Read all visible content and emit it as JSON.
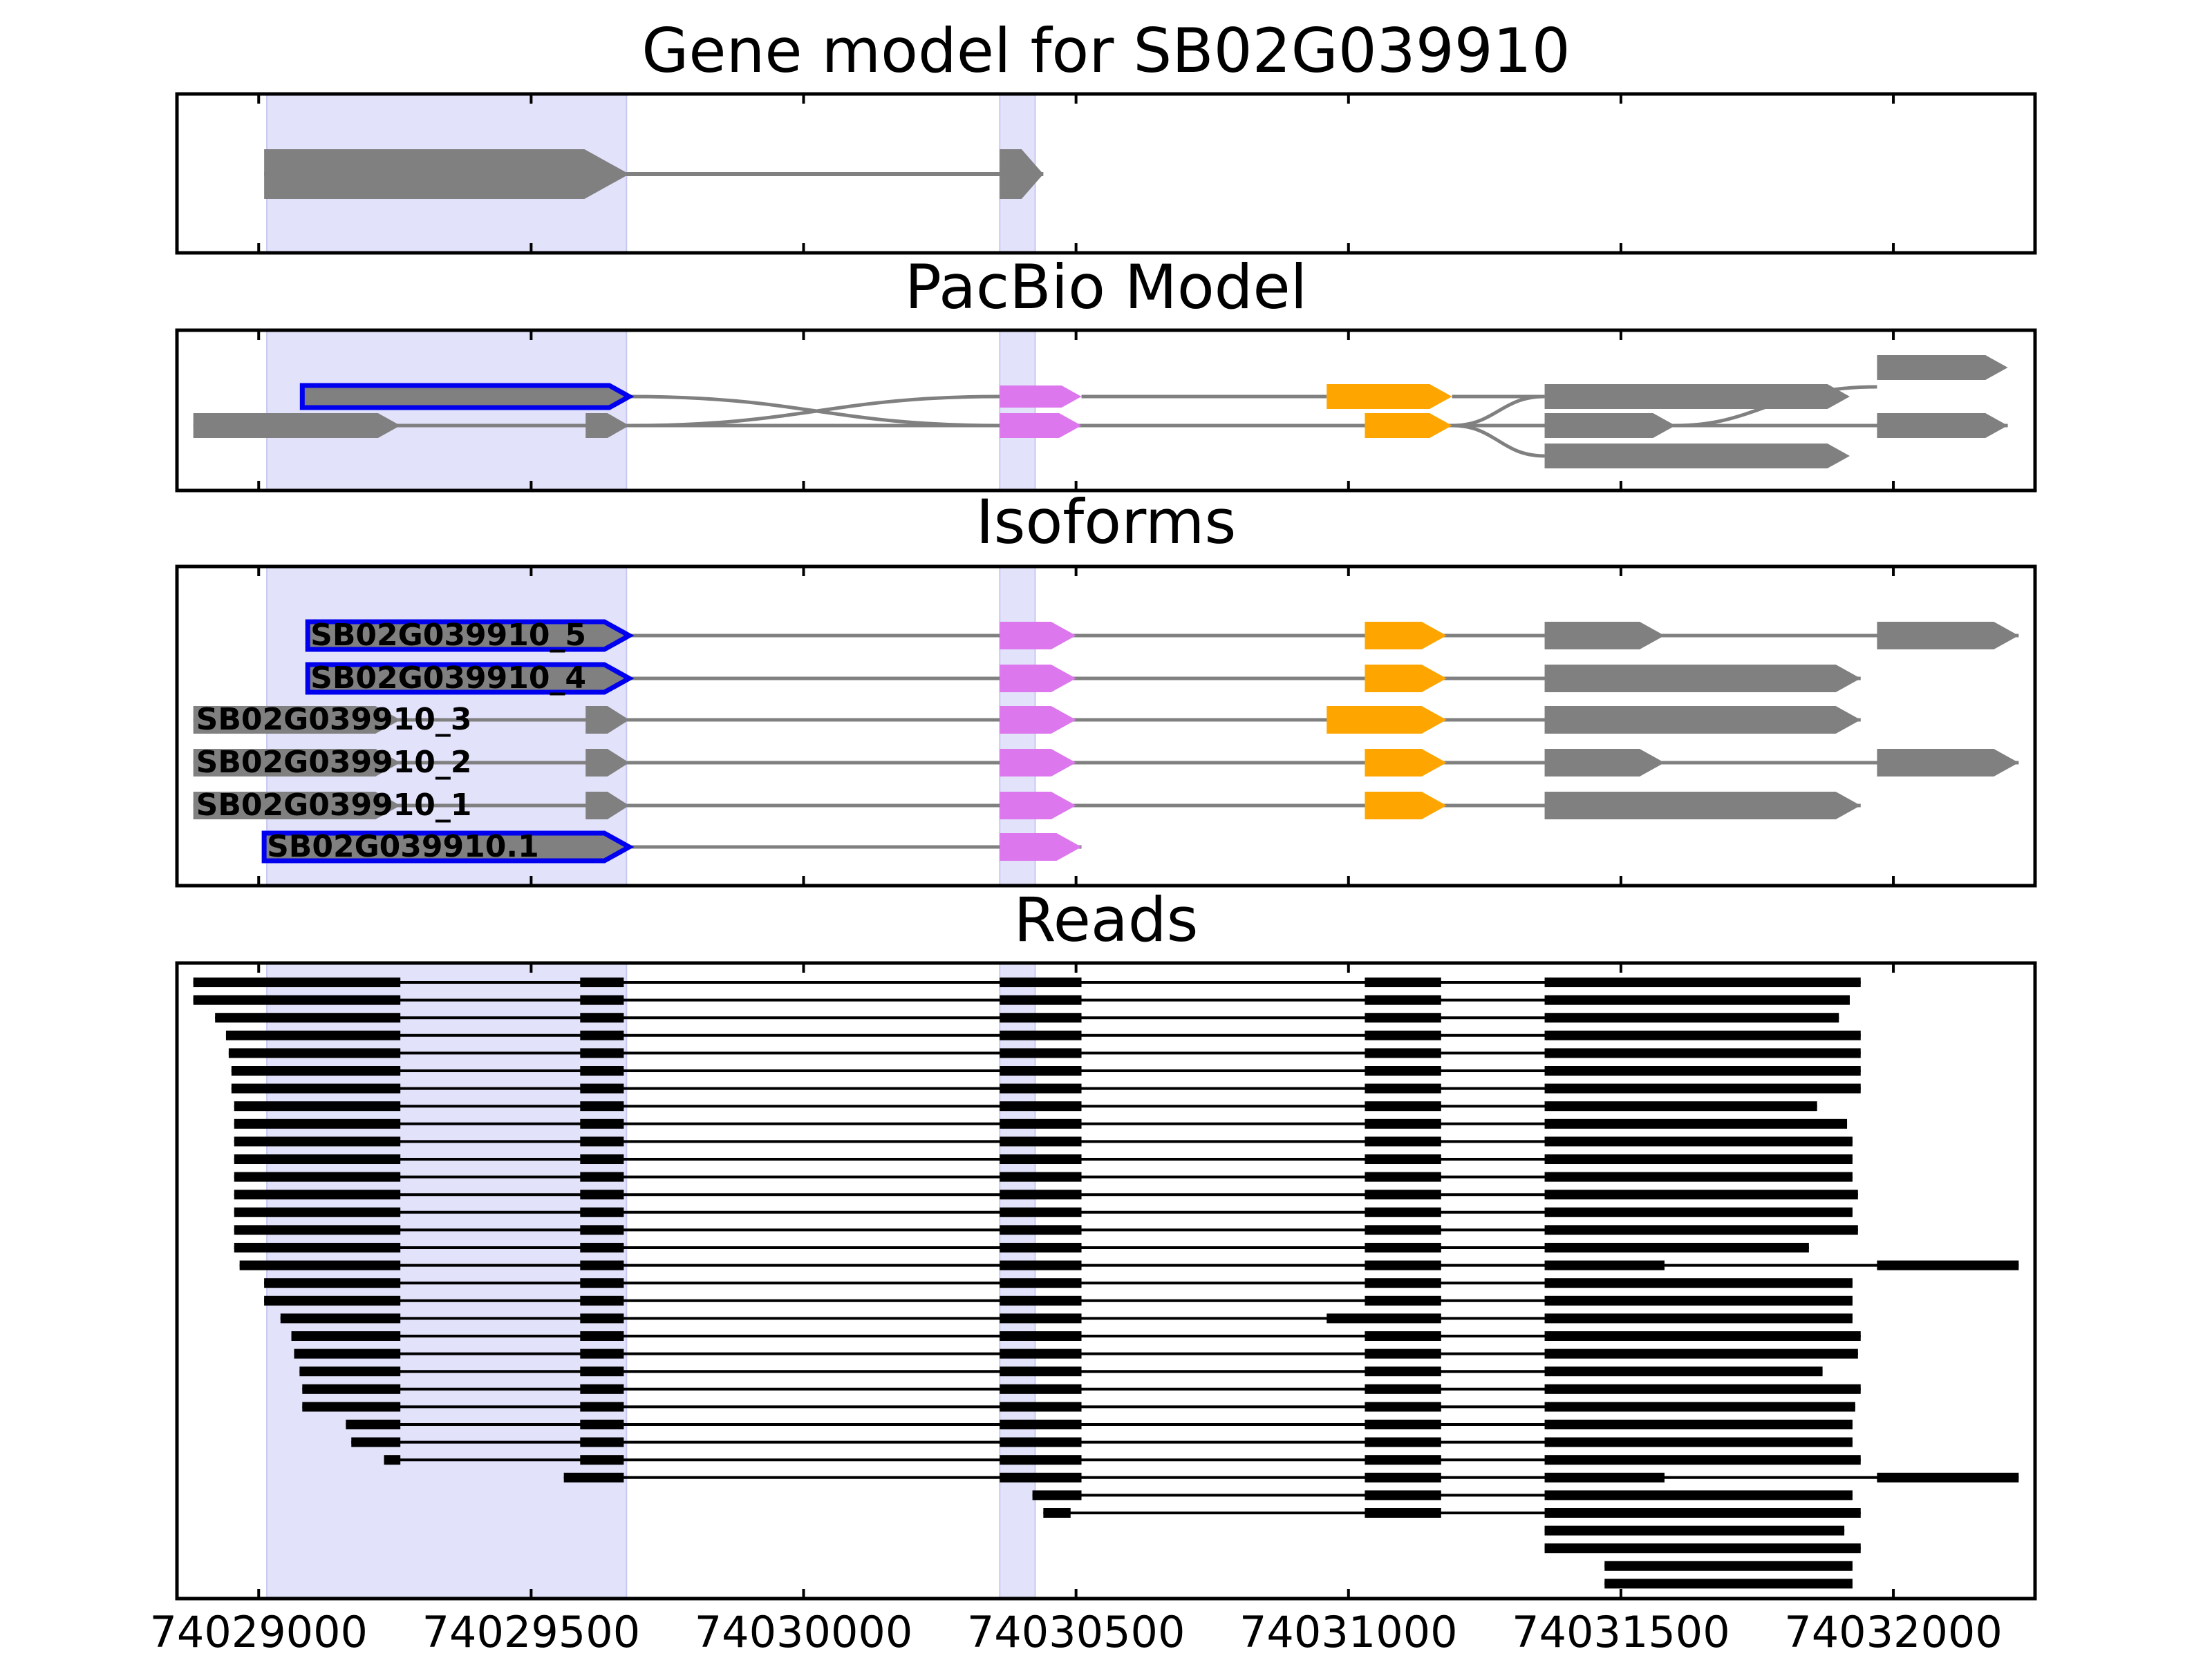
{
  "panels": [
    {
      "title": "Gene model for SB02G039910"
    },
    {
      "title": "PacBio Model"
    },
    {
      "title": "Isoforms"
    },
    {
      "title": "Reads"
    }
  ],
  "x_ticks": [
    {
      "value": 74029000,
      "label": "74029000"
    },
    {
      "value": 74029500,
      "label": "74029500"
    },
    {
      "value": 74030000,
      "label": "74030000"
    },
    {
      "value": 74030500,
      "label": "74030500"
    },
    {
      "value": 74031000,
      "label": "74031000"
    },
    {
      "value": 74031500,
      "label": "74031500"
    },
    {
      "value": 74032000,
      "label": "74032000"
    }
  ],
  "colors": {
    "highlight": "#e2e2fb",
    "exon_gray": "#808080",
    "exon_pink": "#dd77ee",
    "exon_orange": "#ffa500",
    "outline_blue": "#0000ee",
    "intron": "#808080",
    "read": "#000000"
  },
  "chart_data": {
    "type": "gene-structure",
    "x_range": [
      74028850,
      74032260
    ],
    "highlight_regions": [
      [
        74029015,
        74029675
      ],
      [
        74030360,
        74030425
      ]
    ],
    "gene_model": [
      {
        "exons": [
          [
            74029010,
            74029680
          ],
          [
            74030360,
            74030440
          ]
        ],
        "color": "gray",
        "strand": "+"
      }
    ],
    "pacbio_model": [
      {
        "exons": [
          [
            74029080,
            74029680
          ],
          [
            74030360,
            74030510
          ],
          [
            74030960,
            74031190
          ],
          [
            74031360,
            74031920
          ],
          [
            74031970,
            74032210
          ]
        ],
        "color": "pink",
        "outline": true
      },
      {
        "exons": [
          [
            74028880,
            74029260
          ],
          [
            74029600,
            74029680
          ],
          [
            74030360,
            74030510
          ],
          [
            74031030,
            74031190
          ],
          [
            74031360,
            74031600
          ],
          [
            74031970,
            74032210
          ]
        ],
        "color": "gray"
      },
      {
        "exons": [
          [
            74031360,
            74031920
          ]
        ],
        "color": "gray"
      }
    ],
    "isoforms": [
      {
        "name": "SB02G039910_5",
        "exons": [
          [
            74029090,
            74029680
          ],
          [
            74030360,
            74030500
          ],
          [
            74031030,
            74031180
          ],
          [
            74031360,
            74031580
          ],
          [
            74031970,
            74032230
          ]
        ],
        "outline": true
      },
      {
        "name": "SB02G039910_4",
        "exons": [
          [
            74029090,
            74029680
          ],
          [
            74030360,
            74030500
          ],
          [
            74031030,
            74031180
          ],
          [
            74031360,
            74031940
          ]
        ],
        "outline": true
      },
      {
        "name": "SB02G039910_3",
        "exons": [
          [
            74028880,
            74029260
          ],
          [
            74029600,
            74029680
          ],
          [
            74030360,
            74030500
          ],
          [
            74030960,
            74031180
          ],
          [
            74031360,
            74031940
          ]
        ],
        "outline": false
      },
      {
        "name": "SB02G039910_2",
        "exons": [
          [
            74028880,
            74029260
          ],
          [
            74029600,
            74029680
          ],
          [
            74030360,
            74030500
          ],
          [
            74031030,
            74031180
          ],
          [
            74031360,
            74031580
          ],
          [
            74031970,
            74032230
          ]
        ],
        "outline": false
      },
      {
        "name": "SB02G039910_1",
        "exons": [
          [
            74028880,
            74029260
          ],
          [
            74029600,
            74029680
          ],
          [
            74030360,
            74030500
          ],
          [
            74031030,
            74031180
          ],
          [
            74031360,
            74031940
          ]
        ],
        "outline": false
      },
      {
        "name": "SB02G039910.1",
        "exons": [
          [
            74029010,
            74029680
          ],
          [
            74030360,
            74030510
          ]
        ],
        "outline": true
      }
    ],
    "reads": [
      {
        "exons": [
          [
            74028880,
            74029260
          ],
          [
            74029590,
            74029670
          ],
          [
            74030360,
            74030510
          ],
          [
            74031030,
            74031170
          ],
          [
            74031360,
            74031940
          ]
        ]
      },
      {
        "exons": [
          [
            74028880,
            74029260
          ],
          [
            74029590,
            74029670
          ],
          [
            74030360,
            74030510
          ],
          [
            74031030,
            74031170
          ],
          [
            74031360,
            74031920
          ]
        ]
      },
      {
        "exons": [
          [
            74028920,
            74029260
          ],
          [
            74029590,
            74029670
          ],
          [
            74030360,
            74030510
          ],
          [
            74031030,
            74031170
          ],
          [
            74031360,
            74031900
          ]
        ]
      },
      {
        "exons": [
          [
            74028940,
            74029260
          ],
          [
            74029590,
            74029670
          ],
          [
            74030360,
            74030510
          ],
          [
            74031030,
            74031170
          ],
          [
            74031360,
            74031940
          ]
        ]
      },
      {
        "exons": [
          [
            74028945,
            74029260
          ],
          [
            74029590,
            74029670
          ],
          [
            74030360,
            74030510
          ],
          [
            74031030,
            74031170
          ],
          [
            74031360,
            74031940
          ]
        ]
      },
      {
        "exons": [
          [
            74028950,
            74029260
          ],
          [
            74029590,
            74029670
          ],
          [
            74030360,
            74030510
          ],
          [
            74031030,
            74031170
          ],
          [
            74031360,
            74031940
          ]
        ]
      },
      {
        "exons": [
          [
            74028950,
            74029260
          ],
          [
            74029590,
            74029670
          ],
          [
            74030360,
            74030510
          ],
          [
            74031030,
            74031170
          ],
          [
            74031360,
            74031940
          ]
        ]
      },
      {
        "exons": [
          [
            74028955,
            74029260
          ],
          [
            74029590,
            74029670
          ],
          [
            74030360,
            74030510
          ],
          [
            74031030,
            74031170
          ],
          [
            74031360,
            74031860
          ]
        ]
      },
      {
        "exons": [
          [
            74028955,
            74029260
          ],
          [
            74029590,
            74029670
          ],
          [
            74030360,
            74030510
          ],
          [
            74031030,
            74031170
          ],
          [
            74031360,
            74031915
          ]
        ]
      },
      {
        "exons": [
          [
            74028955,
            74029260
          ],
          [
            74029590,
            74029670
          ],
          [
            74030360,
            74030510
          ],
          [
            74031030,
            74031170
          ],
          [
            74031360,
            74031925
          ]
        ]
      },
      {
        "exons": [
          [
            74028955,
            74029260
          ],
          [
            74029590,
            74029670
          ],
          [
            74030360,
            74030510
          ],
          [
            74031030,
            74031170
          ],
          [
            74031360,
            74031925
          ]
        ]
      },
      {
        "exons": [
          [
            74028955,
            74029260
          ],
          [
            74029590,
            74029670
          ],
          [
            74030360,
            74030510
          ],
          [
            74031030,
            74031170
          ],
          [
            74031360,
            74031925
          ]
        ]
      },
      {
        "exons": [
          [
            74028955,
            74029260
          ],
          [
            74029590,
            74029670
          ],
          [
            74030360,
            74030510
          ],
          [
            74031030,
            74031170
          ],
          [
            74031360,
            74031935
          ]
        ]
      },
      {
        "exons": [
          [
            74028955,
            74029260
          ],
          [
            74029590,
            74029670
          ],
          [
            74030360,
            74030510
          ],
          [
            74031030,
            74031170
          ],
          [
            74031360,
            74031925
          ]
        ]
      },
      {
        "exons": [
          [
            74028955,
            74029260
          ],
          [
            74029590,
            74029670
          ],
          [
            74030360,
            74030510
          ],
          [
            74031030,
            74031170
          ],
          [
            74031360,
            74031935
          ]
        ]
      },
      {
        "exons": [
          [
            74028955,
            74029260
          ],
          [
            74029590,
            74029670
          ],
          [
            74030360,
            74030510
          ],
          [
            74031030,
            74031170
          ],
          [
            74031360,
            74031845
          ]
        ]
      },
      {
        "exons": [
          [
            74028965,
            74029260
          ],
          [
            74029590,
            74029670
          ],
          [
            74030360,
            74030510
          ],
          [
            74031030,
            74031170
          ],
          [
            74031360,
            74031580
          ],
          [
            74031970,
            74032230
          ]
        ]
      },
      {
        "exons": [
          [
            74029010,
            74029260
          ],
          [
            74029590,
            74029670
          ],
          [
            74030360,
            74030510
          ],
          [
            74031030,
            74031170
          ],
          [
            74031360,
            74031925
          ]
        ]
      },
      {
        "exons": [
          [
            74029010,
            74029260
          ],
          [
            74029590,
            74029670
          ],
          [
            74030360,
            74030510
          ],
          [
            74031030,
            74031170
          ],
          [
            74031360,
            74031925
          ]
        ]
      },
      {
        "exons": [
          [
            74029040,
            74029260
          ],
          [
            74029590,
            74029670
          ],
          [
            74030360,
            74030510
          ],
          [
            74030960,
            74031170
          ],
          [
            74031360,
            74031925
          ]
        ]
      },
      {
        "exons": [
          [
            74029060,
            74029260
          ],
          [
            74029590,
            74029670
          ],
          [
            74030360,
            74030510
          ],
          [
            74031030,
            74031170
          ],
          [
            74031360,
            74031940
          ]
        ]
      },
      {
        "exons": [
          [
            74029065,
            74029260
          ],
          [
            74029590,
            74029670
          ],
          [
            74030360,
            74030510
          ],
          [
            74031030,
            74031170
          ],
          [
            74031360,
            74031935
          ]
        ]
      },
      {
        "exons": [
          [
            74029075,
            74029260
          ],
          [
            74029590,
            74029670
          ],
          [
            74030360,
            74030510
          ],
          [
            74031030,
            74031170
          ],
          [
            74031360,
            74031870
          ]
        ]
      },
      {
        "exons": [
          [
            74029080,
            74029260
          ],
          [
            74029590,
            74029670
          ],
          [
            74030360,
            74030510
          ],
          [
            74031030,
            74031170
          ],
          [
            74031360,
            74031940
          ]
        ]
      },
      {
        "exons": [
          [
            74029080,
            74029260
          ],
          [
            74029590,
            74029670
          ],
          [
            74030360,
            74030510
          ],
          [
            74031030,
            74031170
          ],
          [
            74031360,
            74031930
          ]
        ]
      },
      {
        "exons": [
          [
            74029160,
            74029260
          ],
          [
            74029590,
            74029670
          ],
          [
            74030360,
            74030510
          ],
          [
            74031030,
            74031170
          ],
          [
            74031360,
            74031925
          ]
        ]
      },
      {
        "exons": [
          [
            74029170,
            74029260
          ],
          [
            74029590,
            74029670
          ],
          [
            74030360,
            74030510
          ],
          [
            74031030,
            74031170
          ],
          [
            74031360,
            74031925
          ]
        ]
      },
      {
        "exons": [
          [
            74029230,
            74029260
          ],
          [
            74029590,
            74029670
          ],
          [
            74030360,
            74030510
          ],
          [
            74031030,
            74031170
          ],
          [
            74031360,
            74031940
          ]
        ]
      },
      {
        "exons": [
          [
            74029560,
            74029670
          ],
          [
            74030360,
            74030510
          ],
          [
            74031030,
            74031170
          ],
          [
            74031360,
            74031580
          ],
          [
            74031970,
            74032230
          ]
        ]
      },
      {
        "exons": [
          [
            74030420,
            74030510
          ],
          [
            74031030,
            74031170
          ],
          [
            74031360,
            74031925
          ]
        ]
      },
      {
        "exons": [
          [
            74030440,
            74030490
          ],
          [
            74031030,
            74031170
          ],
          [
            74031360,
            74031940
          ]
        ]
      },
      {
        "exons": [
          [
            74031360,
            74031910
          ]
        ]
      },
      {
        "exons": [
          [
            74031360,
            74031940
          ]
        ]
      },
      {
        "exons": [
          [
            74031470,
            74031925
          ]
        ]
      },
      {
        "exons": [
          [
            74031470,
            74031925
          ]
        ]
      }
    ]
  }
}
